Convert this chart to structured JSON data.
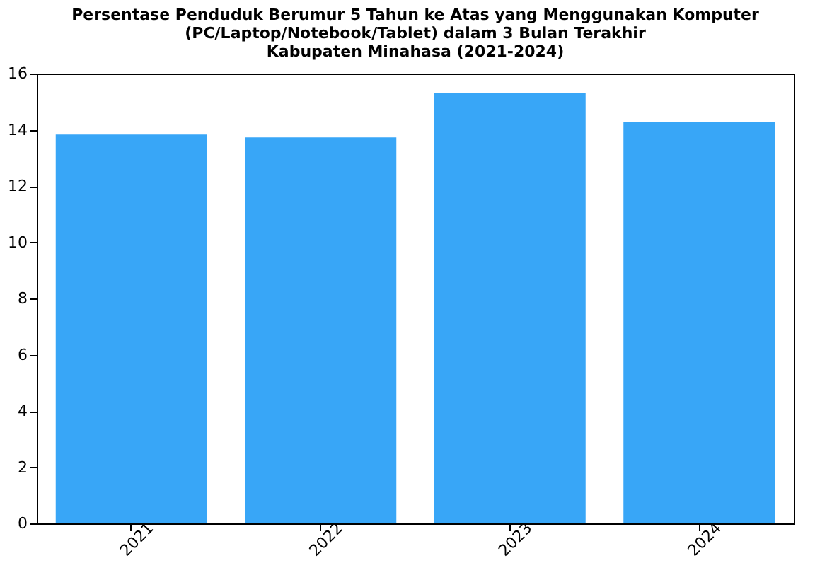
{
  "chart_data": {
    "type": "bar",
    "title": [
      "Persentase Penduduk Berumur 5 Tahun ke Atas yang Menggunakan Komputer",
      "(PC/Laptop/Notebook/Tablet) dalam 3 Bulan Terakhir",
      "Kabupaten Minahasa (2021-2024)"
    ],
    "categories": [
      "2021",
      "2022",
      "2023",
      "2024"
    ],
    "values": [
      13.83,
      13.73,
      15.31,
      14.27
    ],
    "color": "#38a6f7",
    "ylim": [
      0,
      16
    ],
    "yticks": [
      0,
      2,
      4,
      6,
      8,
      10,
      12,
      14,
      16
    ],
    "grid": false
  }
}
